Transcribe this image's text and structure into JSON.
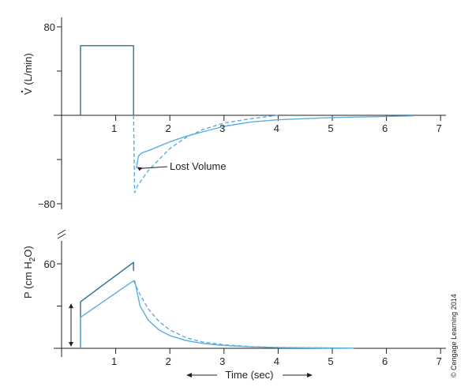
{
  "colors": {
    "flow_square": "#2f6f8f",
    "pressure_upper": "#2f6f8f",
    "curve": "#5aaee0",
    "axis": "#222222"
  },
  "chart_data": [
    {
      "type": "line",
      "title": "",
      "ylabel_prefix": "V",
      "ylabel_suffix": " (L/min)",
      "xlim": [
        0,
        7
      ],
      "ylim": [
        -80,
        80
      ],
      "x_ticks": [
        "1",
        "2",
        "3",
        "4",
        "5",
        "6",
        "7"
      ],
      "y_ticks": [
        {
          "value": 80,
          "label": "80"
        },
        {
          "value": -80,
          "label": "−80"
        }
      ],
      "annotation": {
        "text": "Lost Volume",
        "at": [
          1.38,
          -46
        ]
      },
      "series": [
        {
          "style": "solid-square",
          "points": [
            [
              0.35,
              0
            ],
            [
              0.35,
              63
            ],
            [
              1.33,
              63
            ],
            [
              1.33,
              0
            ]
          ]
        },
        {
          "style": "solid",
          "points": [
            [
              1.38,
              -48
            ],
            [
              1.42,
              -37
            ],
            [
              1.48,
              -34
            ],
            [
              1.6,
              -32
            ],
            [
              1.8,
              -28
            ],
            [
              2.0,
              -24
            ],
            [
              2.3,
              -19
            ],
            [
              2.6,
              -15
            ],
            [
              3.0,
              -10
            ],
            [
              3.5,
              -6
            ],
            [
              4.0,
              -4
            ],
            [
              5.0,
              -2
            ],
            [
              6.0,
              -1
            ],
            [
              6.5,
              -0.5
            ]
          ]
        },
        {
          "style": "dashed",
          "points": [
            [
              1.33,
              0
            ],
            [
              1.35,
              -70
            ],
            [
              1.4,
              -64
            ],
            [
              1.6,
              -50
            ],
            [
              1.8,
              -40
            ],
            [
              2.0,
              -30
            ],
            [
              2.3,
              -20
            ],
            [
              2.6,
              -13
            ],
            [
              3.0,
              -7
            ],
            [
              3.5,
              -3
            ],
            [
              4.0,
              0
            ]
          ]
        }
      ]
    },
    {
      "type": "line",
      "title": "",
      "ylabel_prefix": "P (cm H",
      "ylabel_sub": "2",
      "ylabel_suffix": "O)",
      "xlim": [
        0,
        7
      ],
      "ylim": [
        0,
        70
      ],
      "x_ticks": [
        "1",
        "2",
        "3",
        "4",
        "5",
        "6",
        "7"
      ],
      "y_ticks": [
        {
          "value": 60,
          "label": "60"
        }
      ],
      "xlabel": "Time (sec)",
      "series": [
        {
          "style": "solid-upper",
          "points": [
            [
              0.35,
              0
            ],
            [
              0.35,
              33
            ],
            [
              1.33,
              61
            ],
            [
              1.33,
              55
            ]
          ]
        },
        {
          "style": "solid",
          "points": [
            [
              0.35,
              0
            ],
            [
              0.35,
              22
            ],
            [
              1.33,
              48
            ],
            [
              1.35,
              48
            ],
            [
              1.45,
              30
            ],
            [
              1.6,
              20
            ],
            [
              1.8,
              13
            ],
            [
              2.0,
              9
            ],
            [
              2.3,
              5.5
            ],
            [
              2.6,
              3.5
            ],
            [
              3.0,
              2
            ],
            [
              3.5,
              1
            ],
            [
              4.0,
              0.5
            ],
            [
              5.0,
              0.2
            ],
            [
              5.4,
              0.1
            ]
          ]
        },
        {
          "style": "dashed",
          "points": [
            [
              1.33,
              48
            ],
            [
              1.45,
              38
            ],
            [
              1.6,
              28
            ],
            [
              1.8,
              19
            ],
            [
              2.0,
              13
            ],
            [
              2.3,
              7.5
            ],
            [
              2.6,
              4.5
            ],
            [
              3.0,
              2.5
            ],
            [
              3.5,
              1.2
            ],
            [
              4.0,
              0.6
            ],
            [
              5.0,
              0.2
            ]
          ]
        }
      ]
    }
  ],
  "copyright": "© Cengage Learning 2014"
}
